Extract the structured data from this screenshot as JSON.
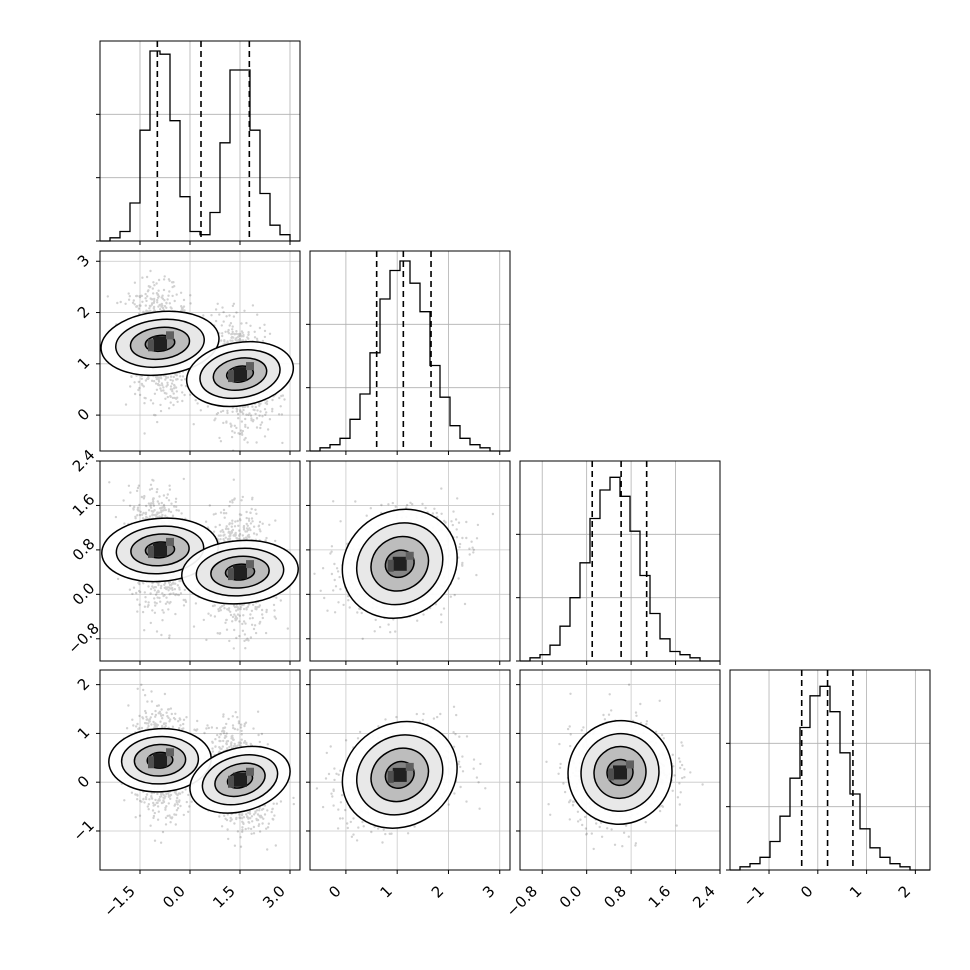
{
  "chart_data": {
    "type": "corner",
    "n_params": 4,
    "grid": true,
    "params": [
      {
        "range": [
          -2.7,
          3.3
        ],
        "ticks": [
          -1.5,
          0.0,
          1.5,
          3.0
        ],
        "tick_labels": [
          "−1.5",
          "0.0",
          "1.5",
          "3.0"
        ],
        "quantiles": [
          -0.98,
          0.33,
          1.78
        ],
        "histogram": {
          "bin_edges": [
            -2.7,
            -2.4,
            -2.1,
            -1.8,
            -1.5,
            -1.2,
            -0.9,
            -0.6,
            -0.3,
            0.0,
            0.3,
            0.6,
            0.9,
            1.2,
            1.5,
            1.8,
            2.1,
            2.4,
            2.7,
            3.0,
            3.3
          ],
          "counts": [
            0,
            1,
            3,
            12,
            35,
            60,
            59,
            38,
            14,
            3,
            2,
            9,
            31,
            54,
            54,
            35,
            15,
            5,
            2,
            0
          ]
        }
      },
      {
        "range": [
          -0.7,
          3.2
        ],
        "ticks": [
          0,
          1,
          2,
          3
        ],
        "tick_labels": [
          "0",
          "1",
          "2",
          "3"
        ],
        "quantiles": [
          0.6,
          1.12,
          1.66
        ],
        "histogram": {
          "bin_edges": [
            -0.7,
            -0.505,
            -0.31,
            -0.115,
            0.08,
            0.275,
            0.47,
            0.665,
            0.86,
            1.055,
            1.25,
            1.445,
            1.64,
            1.835,
            2.03,
            2.225,
            2.42,
            2.615,
            2.81,
            3.005,
            3.2
          ],
          "counts": [
            0,
            1,
            2,
            4,
            10,
            18,
            31,
            48,
            57,
            60,
            53,
            44,
            27,
            17,
            8,
            4,
            2,
            1,
            0,
            0
          ]
        }
      },
      {
        "range": [
          -1.2,
          2.4
        ],
        "ticks": [
          -0.8,
          0.0,
          0.8,
          1.6,
          2.4
        ],
        "tick_labels": [
          "−0.8",
          "0.0",
          "0.8",
          "1.6",
          "2.4"
        ],
        "quantiles": [
          0.1,
          0.62,
          1.08
        ],
        "histogram": {
          "bin_edges": [
            -1.2,
            -1.02,
            -0.84,
            -0.66,
            -0.48,
            -0.3,
            -0.12,
            0.06,
            0.24,
            0.42,
            0.6,
            0.78,
            0.96,
            1.14,
            1.32,
            1.5,
            1.68,
            1.86,
            2.04,
            2.22,
            2.4
          ],
          "counts": [
            0,
            1,
            2,
            5,
            11,
            20,
            31,
            45,
            54,
            58,
            52,
            41,
            27,
            15,
            7,
            3,
            2,
            1,
            0,
            0
          ]
        }
      },
      {
        "range": [
          -1.8,
          2.3
        ],
        "ticks": [
          -1,
          0,
          1,
          2
        ],
        "tick_labels": [
          "−1",
          "0",
          "1",
          "2"
        ],
        "quantiles": [
          -0.33,
          0.2,
          0.72
        ],
        "histogram": {
          "bin_edges": [
            -1.8,
            -1.595,
            -1.39,
            -1.185,
            -0.98,
            -0.775,
            -0.57,
            -0.365,
            -0.16,
            0.045,
            0.25,
            0.455,
            0.66,
            0.865,
            1.07,
            1.275,
            1.48,
            1.685,
            1.89,
            2.095,
            2.3
          ],
          "counts": [
            0,
            1,
            2,
            4,
            9,
            17,
            29,
            45,
            55,
            58,
            50,
            37,
            24,
            13,
            7,
            4,
            2,
            1,
            0,
            0
          ]
        }
      }
    ],
    "hist_ylim": [
      0,
      60
    ],
    "hist_yticks": [
      20,
      40
    ],
    "scatter_panels": [
      {
        "row": 1,
        "col": 0,
        "modes": [
          {
            "x": -0.9,
            "y": 1.4,
            "sx": 0.45,
            "sy": 0.55,
            "rho": -0.15
          },
          {
            "x": 1.5,
            "y": 0.8,
            "sx": 0.45,
            "sy": 0.5,
            "rho": -0.2
          }
        ]
      },
      {
        "row": 2,
        "col": 0,
        "modes": [
          {
            "x": -0.9,
            "y": 0.8,
            "sx": 0.45,
            "sy": 0.5,
            "rho": -0.1
          },
          {
            "x": 1.5,
            "y": 0.4,
            "sx": 0.45,
            "sy": 0.5,
            "rho": -0.1
          }
        ]
      },
      {
        "row": 3,
        "col": 0,
        "modes": [
          {
            "x": -0.9,
            "y": 0.45,
            "sx": 0.45,
            "sy": 0.5,
            "rho": -0.05
          },
          {
            "x": 1.5,
            "y": 0.05,
            "sx": 0.45,
            "sy": 0.5,
            "rho": -0.3
          }
        ]
      },
      {
        "row": 2,
        "col": 1,
        "modes": [
          {
            "x": 1.05,
            "y": 0.55,
            "sx": 0.55,
            "sy": 0.45,
            "rho": 0.25
          }
        ]
      },
      {
        "row": 3,
        "col": 1,
        "modes": [
          {
            "x": 1.05,
            "y": 0.15,
            "sx": 0.55,
            "sy": 0.5,
            "rho": 0.25
          }
        ]
      },
      {
        "row": 3,
        "col": 2,
        "modes": [
          {
            "x": 0.6,
            "y": 0.2,
            "sx": 0.45,
            "sy": 0.5,
            "rho": 0.15
          }
        ]
      }
    ],
    "contour_levels_sigma": [
      0.5,
      1.0,
      1.5,
      2.0
    ]
  }
}
